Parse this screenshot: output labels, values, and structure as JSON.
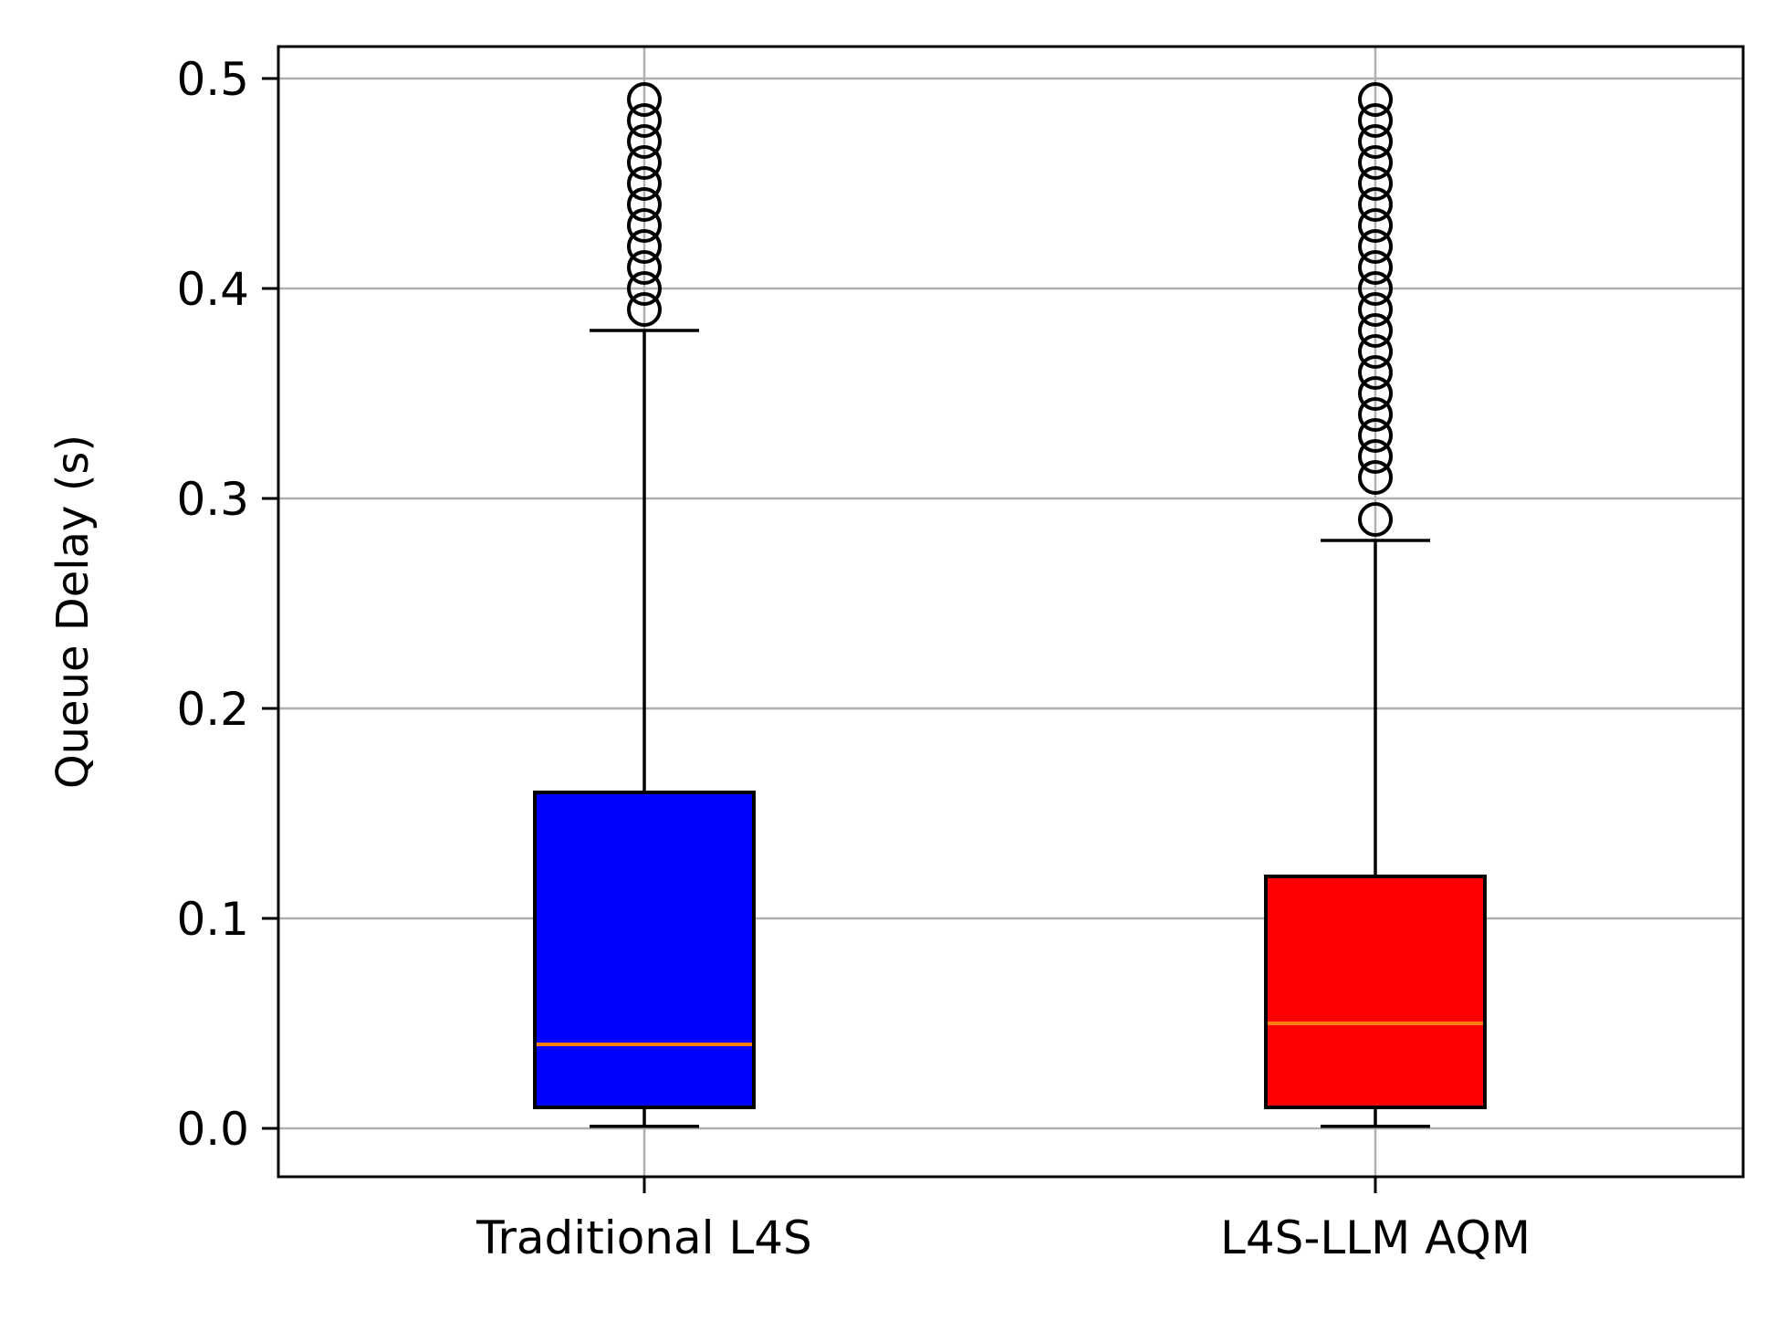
{
  "chart_data": {
    "type": "box",
    "title": "",
    "xlabel": "",
    "ylabel": "Queue Delay (s)",
    "ylim": [
      -0.022,
      0.515
    ],
    "yticks": [
      0.0,
      0.1,
      0.2,
      0.3,
      0.4,
      0.5
    ],
    "ytick_labels": [
      "0.0",
      "0.1",
      "0.2",
      "0.3",
      "0.4",
      "0.5"
    ],
    "grid": true,
    "categories": [
      "Traditional L4S",
      "L4S-LLM AQM"
    ],
    "series": [
      {
        "fill_color": "#0000ff",
        "whisker_low": 0.001,
        "q1": 0.01,
        "median": 0.04,
        "q3": 0.16,
        "whisker_high": 0.38,
        "outliers": [
          0.39,
          0.4,
          0.41,
          0.42,
          0.43,
          0.44,
          0.45,
          0.46,
          0.47,
          0.48,
          0.49
        ]
      },
      {
        "fill_color": "#ff0000",
        "whisker_low": 0.001,
        "q1": 0.01,
        "median": 0.05,
        "q3": 0.12,
        "whisker_high": 0.28,
        "outliers": [
          0.29,
          0.31,
          0.32,
          0.33,
          0.34,
          0.35,
          0.36,
          0.37,
          0.38,
          0.39,
          0.4,
          0.41,
          0.42,
          0.43,
          0.44,
          0.45,
          0.46,
          0.47,
          0.48,
          0.49
        ]
      }
    ],
    "colors": {
      "median": "#ff7f0e",
      "grid": "#b0b0b0",
      "axes": "#000000"
    }
  }
}
